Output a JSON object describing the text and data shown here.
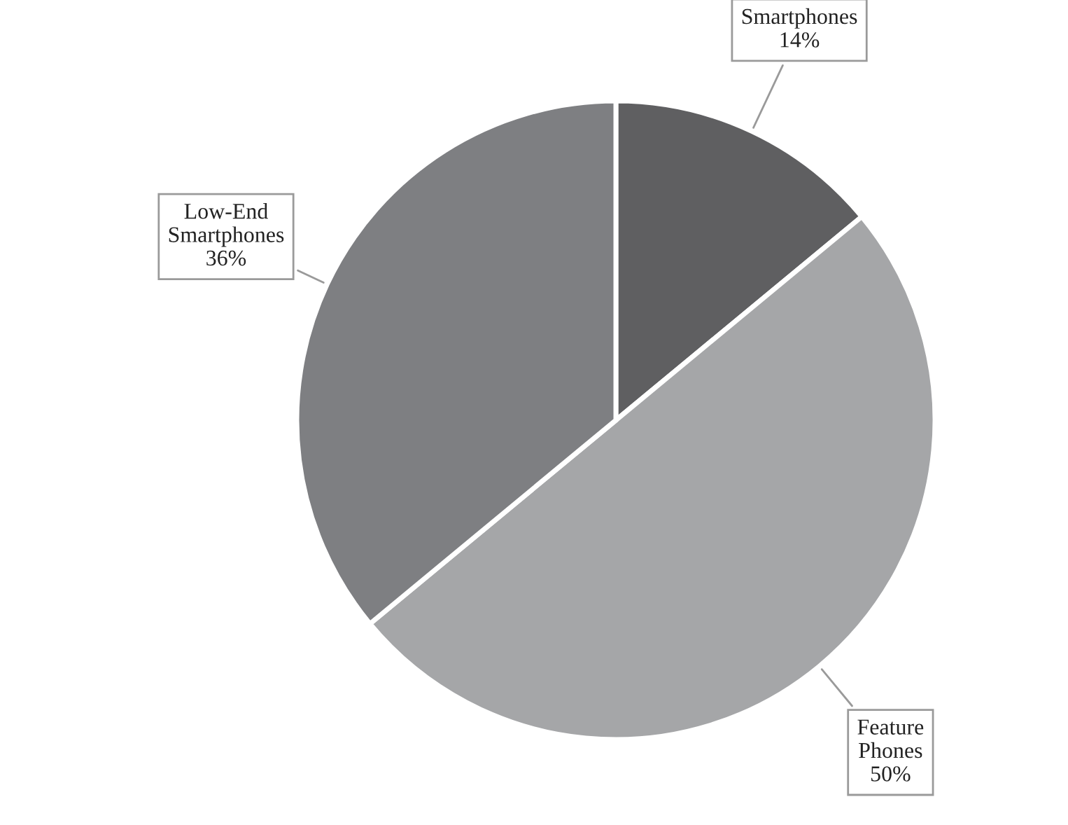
{
  "chart_data": {
    "type": "pie",
    "categories": [
      "Smartphones",
      "Feature Phones",
      "Low-End Smartphones"
    ],
    "values": [
      14,
      50,
      36
    ],
    "value_labels": [
      "14%",
      "50%",
      "36%"
    ],
    "colors": [
      "#5f5f61",
      "#a5a6a8",
      "#7e7f82"
    ],
    "legend": false
  }
}
